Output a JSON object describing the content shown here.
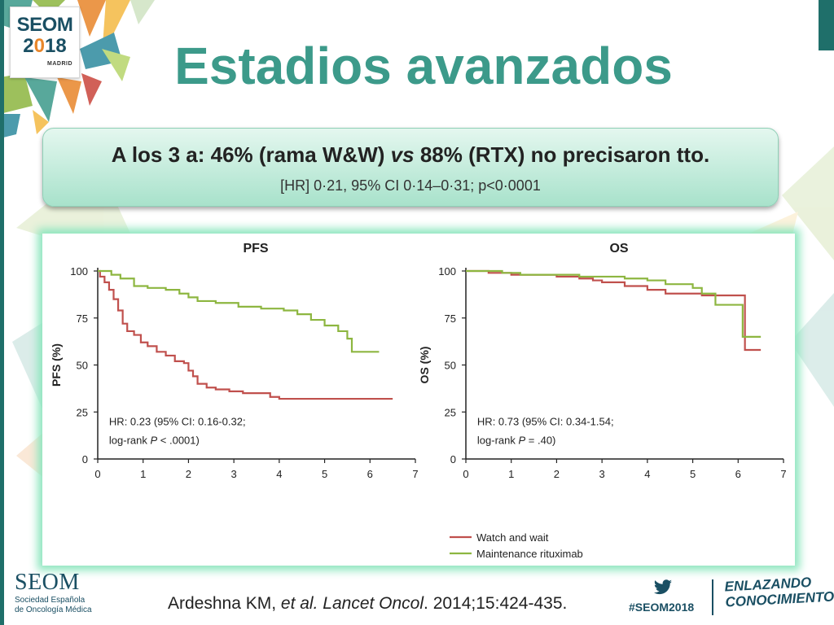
{
  "slide": {
    "title": "Estadios avanzados",
    "callout_prefix": "A los 3 a: 46% (rama W&W) ",
    "callout_vs": "vs",
    "callout_suffix": " 88% (RTX) no precisaron tto.",
    "callout_sub": "[HR] 0·21, 95% CI 0·14–0·31; p<0·0001",
    "citation_author": "Ardeshna KM, ",
    "citation_etal": "et al.",
    "citation_space": " ",
    "citation_journal": "Lancet Oncol",
    "citation_rest": ". 2014;15:424-435.",
    "hashtag": "#SEOM2018",
    "slogan_line1": "ENLAZANDO",
    "slogan_line2": "CONOCIMIENTO"
  },
  "logo": {
    "name": "SEOM",
    "year_a": "2",
    "year_dot": "0",
    "year_b": "18",
    "city": "MADRID",
    "footer_name": "SEOM",
    "footer_line1": "Sociedad Española",
    "footer_line2": "de Oncología Médica"
  },
  "colors": {
    "title": "#3c9a8a",
    "watch_wait": "#c0504d",
    "rituximab": "#8db640",
    "brand": "#1a4f63"
  },
  "icons": [
    "twitter-bird-icon"
  ],
  "chart_data": [
    {
      "type": "line",
      "title": "PFS",
      "ylabel": "PFS (%)",
      "xlabel": "",
      "xlim": [
        0,
        7
      ],
      "ylim": [
        0,
        100
      ],
      "xticks": [
        "0",
        "1",
        "2",
        "3",
        "4",
        "5",
        "6",
        "7"
      ],
      "yticks": [
        "0",
        "25",
        "50",
        "75",
        "100"
      ],
      "annotation": [
        "HR:  0.23 (95% CI: 0.16-0.32;",
        "log-rank  ",
        "P",
        " < .0001)"
      ],
      "series": [
        {
          "name": "Watch and wait",
          "color": "#c0504d",
          "steps": [
            [
              0,
              100
            ],
            [
              0.05,
              97
            ],
            [
              0.15,
              94
            ],
            [
              0.25,
              90
            ],
            [
              0.35,
              85
            ],
            [
              0.45,
              79
            ],
            [
              0.55,
              72
            ],
            [
              0.65,
              68
            ],
            [
              0.8,
              66
            ],
            [
              0.95,
              62
            ],
            [
              1.1,
              60
            ],
            [
              1.3,
              57
            ],
            [
              1.5,
              55
            ],
            [
              1.7,
              52
            ],
            [
              1.9,
              51
            ],
            [
              2.0,
              47
            ],
            [
              2.1,
              44
            ],
            [
              2.2,
              40
            ],
            [
              2.4,
              38
            ],
            [
              2.6,
              37
            ],
            [
              2.9,
              36
            ],
            [
              3.2,
              35
            ],
            [
              3.5,
              35
            ],
            [
              3.8,
              33
            ],
            [
              4.0,
              32
            ],
            [
              6.5,
              32
            ]
          ]
        },
        {
          "name": "Maintenance  rituximab",
          "color": "#8db640",
          "steps": [
            [
              0,
              100
            ],
            [
              0.3,
              98
            ],
            [
              0.5,
              96
            ],
            [
              0.8,
              92
            ],
            [
              1.1,
              91
            ],
            [
              1.5,
              90
            ],
            [
              1.8,
              88
            ],
            [
              2.0,
              86
            ],
            [
              2.2,
              84
            ],
            [
              2.6,
              83
            ],
            [
              3.1,
              81
            ],
            [
              3.6,
              80
            ],
            [
              4.1,
              79
            ],
            [
              4.4,
              77
            ],
            [
              4.7,
              74
            ],
            [
              5.0,
              71
            ],
            [
              5.3,
              68
            ],
            [
              5.5,
              64
            ],
            [
              5.6,
              57
            ],
            [
              6.2,
              57
            ]
          ]
        }
      ]
    },
    {
      "type": "line",
      "title": "OS",
      "ylabel": "OS (%)",
      "xlabel": "",
      "xlim": [
        0,
        7
      ],
      "ylim": [
        0,
        100
      ],
      "xticks": [
        "0",
        "1",
        "2",
        "3",
        "4",
        "5",
        "6",
        "7"
      ],
      "yticks": [
        "0",
        "25",
        "50",
        "75",
        "100"
      ],
      "annotation": [
        "HR:  0.73 (95% CI: 0.34-1.54;",
        "log-rank  ",
        "P",
        " = .40)"
      ],
      "series": [
        {
          "name": "Watch and wait",
          "color": "#c0504d",
          "steps": [
            [
              0,
              100
            ],
            [
              0.5,
              99
            ],
            [
              1.0,
              98
            ],
            [
              1.5,
              98
            ],
            [
              2.0,
              97
            ],
            [
              2.5,
              96
            ],
            [
              2.8,
              95
            ],
            [
              3.0,
              94
            ],
            [
              3.5,
              92
            ],
            [
              4.0,
              90
            ],
            [
              4.4,
              88
            ],
            [
              5.0,
              88
            ],
            [
              5.2,
              87
            ],
            [
              6.1,
              87
            ],
            [
              6.15,
              58
            ],
            [
              6.5,
              58
            ]
          ]
        },
        {
          "name": "Maintenance  rituximab",
          "color": "#8db640",
          "steps": [
            [
              0,
              100
            ],
            [
              0.8,
              99
            ],
            [
              1.2,
              98
            ],
            [
              2.0,
              98
            ],
            [
              2.5,
              97
            ],
            [
              3.0,
              97
            ],
            [
              3.5,
              96
            ],
            [
              4.0,
              95
            ],
            [
              4.4,
              93
            ],
            [
              5.0,
              91
            ],
            [
              5.2,
              88
            ],
            [
              5.5,
              82
            ],
            [
              6.0,
              82
            ],
            [
              6.1,
              65
            ],
            [
              6.5,
              65
            ]
          ]
        }
      ]
    }
  ],
  "legend": [
    {
      "label": "Watch and wait",
      "color": "#c0504d"
    },
    {
      "label": "Maintenance  rituximab",
      "color": "#8db640"
    }
  ]
}
